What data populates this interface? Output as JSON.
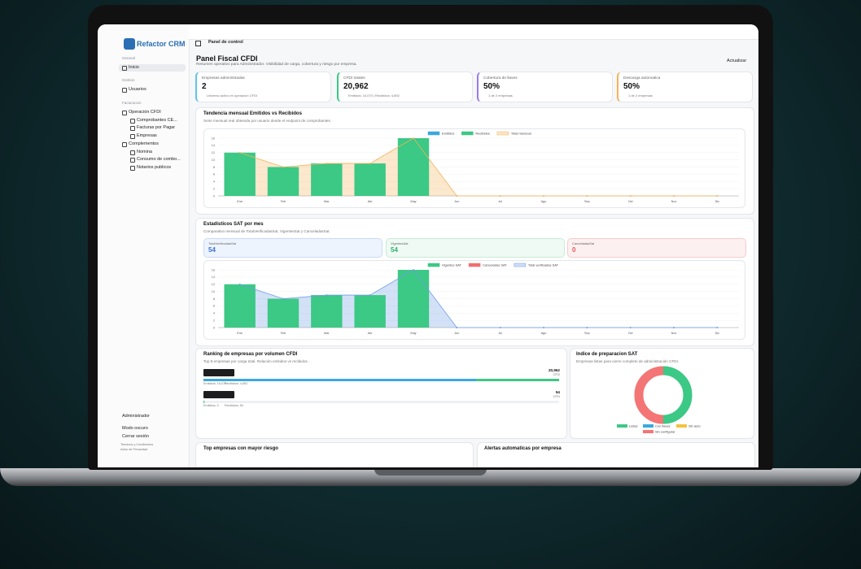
{
  "sidebar": {
    "logo": "Refactor CRM",
    "sections": [
      {
        "label": "General",
        "items": [
          "Inicio"
        ]
      },
      {
        "label": "Gestion",
        "items": [
          "Usuarios"
        ]
      },
      {
        "label": "Facturacion",
        "items": [
          "Operación CFDI",
          "Comprobantes CE...",
          "Facturas por Pagar",
          "Empresas",
          "Complementos",
          "Nomina",
          "Consumo de combo...",
          "Notarios publicos"
        ]
      }
    ],
    "footer": [
      "Administrador",
      "Modo oscuro",
      "Cerrar sesión",
      "Terminos y Condiciones",
      "Aviso de Privacidad"
    ]
  },
  "topbar": {
    "title": "Panel de control"
  },
  "header": {
    "title": "Panel Fiscal CFDI",
    "subtitle": "Resumen operativo para Administrador. Visibilidad de carga, cobertura y riesgo por empresa.",
    "button": "Actualizar"
  },
  "kpis": [
    {
      "label": "Empresas administradas",
      "value": "2",
      "note": "Universo activo en operación CFDI",
      "color": "#5fc3e8"
    },
    {
      "label": "CFDI totales",
      "value": "20,962",
      "note": "Emitidos: 16,070 | Recibidos: 4,892",
      "color": "#3cc885"
    },
    {
      "label": "Cobertura de llaves",
      "value": "50%",
      "note": "1 de 2 empresas",
      "color": "#9b7be8"
    },
    {
      "label": "Descarga automatica",
      "value": "50%",
      "note": "1 de 2 empresas",
      "color": "#f2b45a"
    }
  ],
  "chart_data": [
    {
      "type": "bar",
      "title": "Tendencia mensual Emitidos vs Recibidos",
      "subtitle": "Serie mensual real obtenida por usuario desde el endpoint de comprobantes.",
      "categories": [
        "Ene",
        "Feb",
        "Mar",
        "Abr",
        "May",
        "Jun",
        "Jul",
        "Ago",
        "Sep",
        "Oct",
        "Nov",
        "Dic"
      ],
      "series": [
        {
          "name": "Emitidos",
          "color": "#3aa9e0",
          "values": [
            0,
            0,
            0,
            0,
            0,
            0,
            0,
            0,
            0,
            0,
            0,
            0
          ]
        },
        {
          "name": "Recibidos",
          "color": "#3cc885",
          "values": [
            12,
            8,
            9,
            9,
            16,
            0,
            0,
            0,
            0,
            0,
            0,
            0
          ]
        },
        {
          "name": "Total mensual",
          "color": "#f2b45a",
          "type": "area",
          "values": [
            12,
            8,
            9,
            9,
            16,
            0,
            0,
            0,
            0,
            0,
            0,
            0
          ]
        }
      ],
      "ylim": [
        0,
        16
      ],
      "yticks": [
        0,
        2,
        4,
        6,
        8,
        10,
        12,
        14,
        16
      ],
      "grid": true
    },
    {
      "type": "bar",
      "title": "Estadisticos SAT por mes",
      "subtitle": "Comparativo mensual de TotalVerificadasSat, VigentesSat y CanceladasSat.",
      "categories": [
        "Ene",
        "Feb",
        "Mar",
        "Abr",
        "May",
        "Jun",
        "Jul",
        "Ago",
        "Sep",
        "Oct",
        "Nov",
        "Dic"
      ],
      "series": [
        {
          "name": "Vigentes SAT",
          "color": "#3cc885",
          "values": [
            12,
            8,
            9,
            9,
            16,
            0,
            0,
            0,
            0,
            0,
            0,
            0
          ]
        },
        {
          "name": "Canceladas SAT",
          "color": "#f07070",
          "values": [
            0,
            0,
            0,
            0,
            0,
            0,
            0,
            0,
            0,
            0,
            0,
            0
          ]
        },
        {
          "name": "Total verificadas SAT",
          "color": "#6e9de6",
          "type": "area",
          "values": [
            12,
            8,
            9,
            9,
            16,
            0,
            0,
            0,
            0,
            0,
            0,
            0
          ]
        }
      ],
      "ylim": [
        0,
        16
      ],
      "yticks": [
        0,
        2,
        4,
        6,
        8,
        10,
        12,
        14,
        16
      ],
      "grid": true
    },
    {
      "type": "donut",
      "title": "Indice de preparacion SAT",
      "subtitle": "Empresas listas para cierre completo de administración CFDI.",
      "categories": [
        "Listas",
        "Con llaves",
        "Sin auto",
        "Sin configurar"
      ],
      "values": [
        1,
        0,
        0,
        1
      ],
      "colors": [
        "#3cc885",
        "#3aa9e0",
        "#f2c140",
        "#f47575"
      ]
    }
  ],
  "sat_stats": [
    {
      "label": "TotalVerificadasSat",
      "value": "54",
      "color": "#3a6fd8",
      "bg": "#eef4fd",
      "border": "#c9dbf6"
    },
    {
      "label": "VigentesSat",
      "value": "54",
      "color": "#2fae6c",
      "bg": "#eefaf3",
      "border": "#c8ecd8"
    },
    {
      "label": "CanceladasSat",
      "value": "0",
      "color": "#e05a5a",
      "bg": "#fdf0f0",
      "border": "#f5cccc"
    }
  ],
  "ranking": {
    "title": "Ranking de empresas por volumen CFDI",
    "subtitle": "Top 8 empresas por carga total. Relación emitidos vs recibidos.",
    "rows": [
      {
        "total": 20962,
        "total_label": "20,962",
        "unit": "CFDI",
        "emitidos": 16070,
        "emitidos_label": "Emitidos: 16,070",
        "recibidos": 4892,
        "recibidos_label": "Recibidos: 4,892"
      },
      {
        "total": 54,
        "total_label": "54",
        "unit": "CFDI",
        "emitidos": 0,
        "emitidos_label": "Emitidos: 0",
        "recibidos": 54,
        "recibidos_label": "Recibidos: 54"
      }
    ]
  },
  "bottom": [
    "Top empresas con mayor riesgo",
    "Alertas automaticas por empresa"
  ]
}
